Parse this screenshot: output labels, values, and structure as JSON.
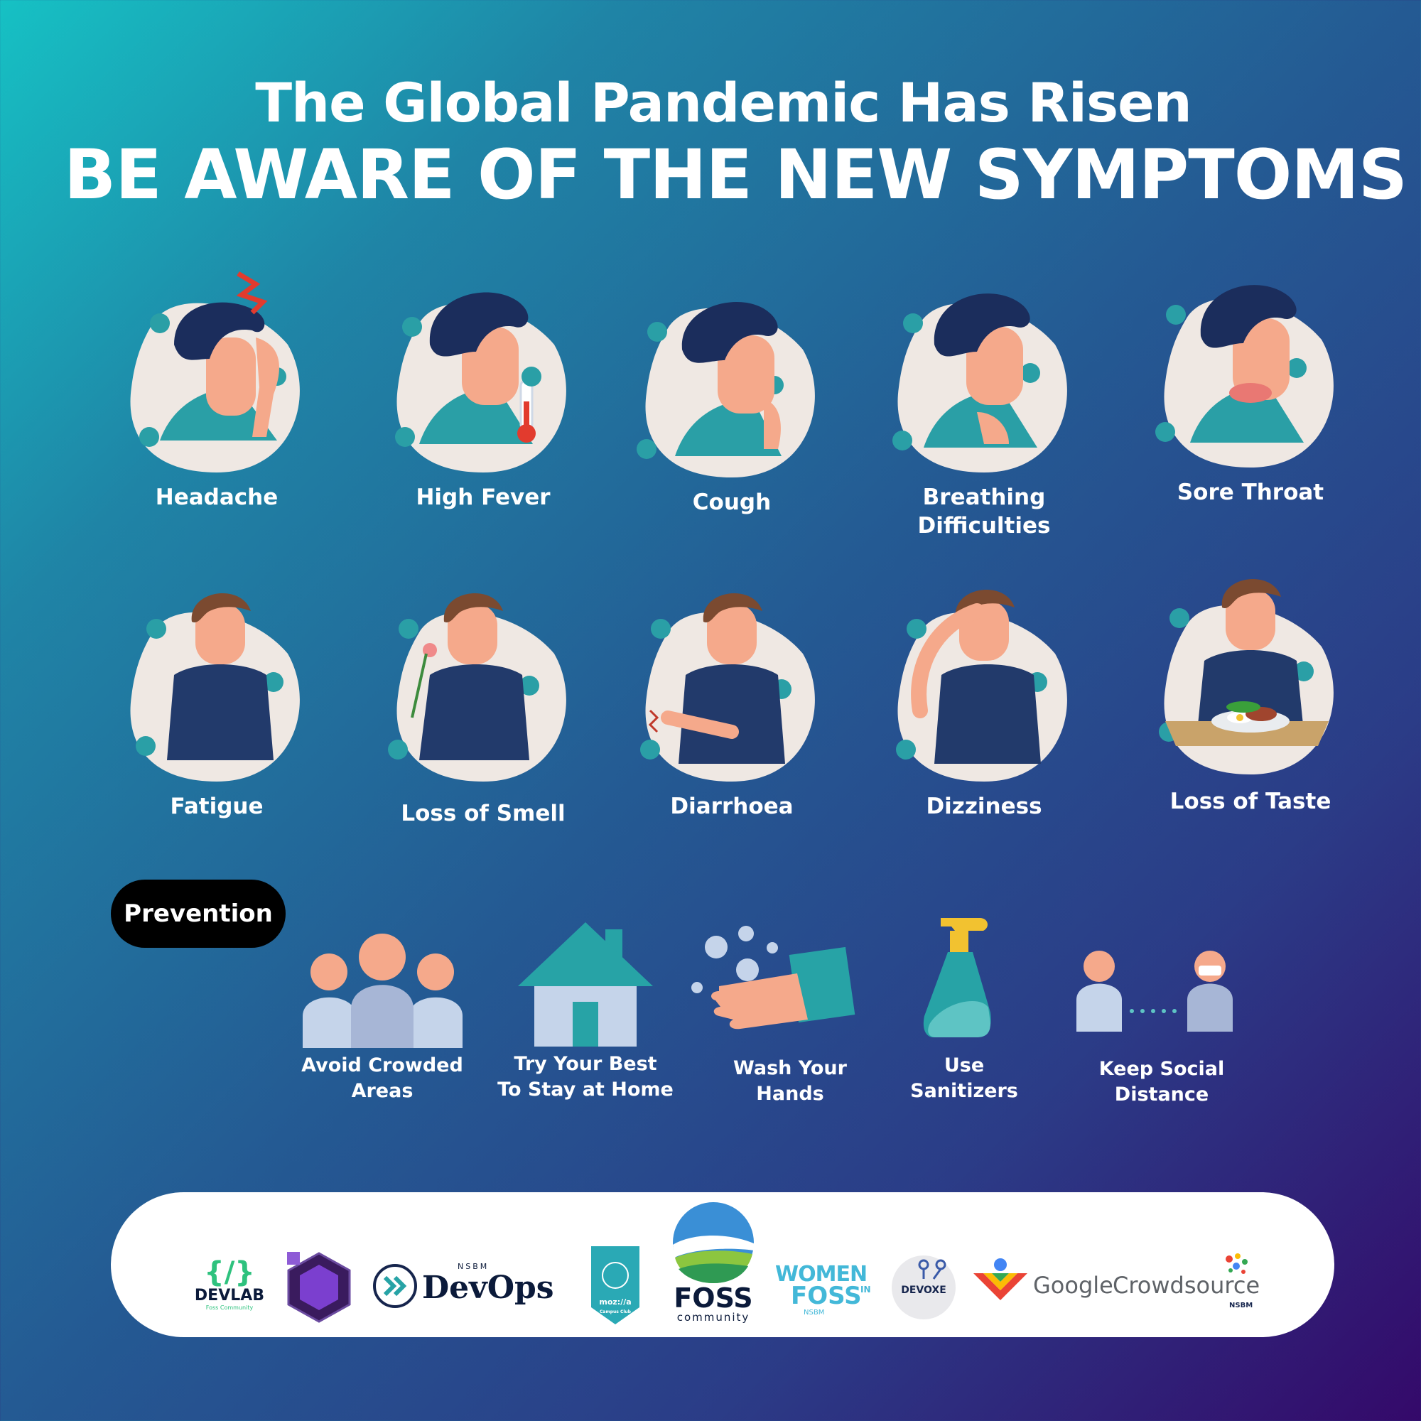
{
  "header": {
    "title": "The Global Pandemic Has Risen",
    "subtitle": "BE AWARE OF THE NEW SYMPTOMS"
  },
  "colors": {
    "skin": "#f5a98b",
    "hair": "#1b2d5c",
    "shirt_teal": "#2a9fa6",
    "shirt_navy": "#223a6b",
    "blob": "#efe8e3",
    "virus": "#2a9fa6",
    "house": "#27a3a6",
    "people": "#b9c9e0"
  },
  "symptoms": [
    {
      "label": "Headache",
      "icon": "headache-icon"
    },
    {
      "label": "High Fever",
      "icon": "fever-icon"
    },
    {
      "label": "Cough",
      "icon": "cough-icon"
    },
    {
      "label": "Breathing Difficulties",
      "icon": "breathing-icon"
    },
    {
      "label": "Sore Throat",
      "icon": "sore-throat-icon"
    },
    {
      "label": "Fatigue",
      "icon": "fatigue-icon"
    },
    {
      "label": "Loss of Smell",
      "icon": "smell-icon"
    },
    {
      "label": "Diarrhoea",
      "icon": "diarrhoea-icon"
    },
    {
      "label": "Dizziness",
      "icon": "dizziness-icon"
    },
    {
      "label": "Loss of Taste",
      "icon": "taste-icon"
    }
  ],
  "prevention": {
    "title": "Prevention",
    "items": [
      {
        "line1": "Avoid Crowded",
        "line2": "Areas",
        "icon": "crowd-icon"
      },
      {
        "line1": "Try Your Best",
        "line2": "To Stay at Home",
        "icon": "house-icon"
      },
      {
        "line1": "Wash Your",
        "line2": "Hands",
        "icon": "hand-wash-icon"
      },
      {
        "line1": "Use",
        "line2": "Sanitizers",
        "icon": "sanitizer-icon"
      },
      {
        "line1": "Keep Social",
        "line2": "Distance",
        "icon": "social-distance-icon"
      }
    ]
  },
  "sponsors": {
    "devlab": "DEVLAB",
    "devlab_sub": "Foss Community",
    "devops_small": "NSBM",
    "devops": "DevOps",
    "mozilla": "moz://a",
    "mozilla_sub": "Campus Club",
    "foss": "FOSS",
    "foss_sub": "community",
    "women": "WOMEN",
    "women_in": "IN",
    "women_foss": "FOSS",
    "women_sub": "NSBM",
    "devoxe": "DEVOXE",
    "google": "Google",
    "crowdsource": "Crowdsource",
    "crowdsource_sub": "NSBM"
  }
}
